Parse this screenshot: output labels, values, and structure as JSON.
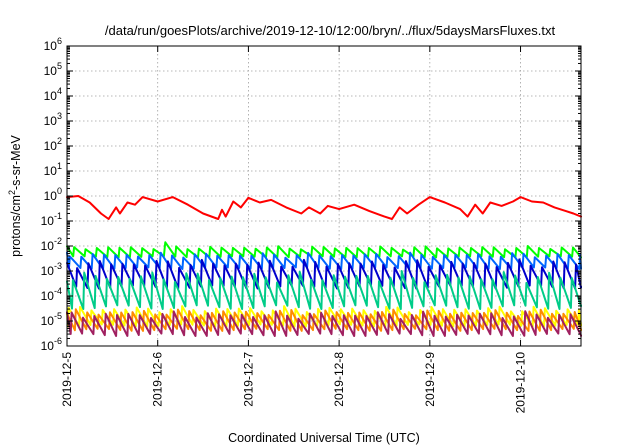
{
  "chart_data": {
    "type": "line",
    "title": "/data/run/goesPlots/archive/2019-12-10/12:00/bryn/../flux/5daysMarsFluxes.txt",
    "xlabel": "Coordinated Universal Time (UTC)",
    "ylabel_main": "protons/cm",
    "ylabel_sup": "2",
    "ylabel_tail": "-s-sr-MeV",
    "x_axis": {
      "type": "date",
      "range": [
        "2019-12-05T00:00",
        "2019-12-10T16:00"
      ],
      "tick_labels": [
        "2019-12-5",
        "2019-12-6",
        "2019-12-7",
        "2019-12-8",
        "2019-12-9",
        "2019-12-10"
      ]
    },
    "y_axis": {
      "scale": "log",
      "range": [
        1e-06,
        1000000.0
      ],
      "tick_labels": [
        {
          "base": "10",
          "exp": "-6"
        },
        {
          "base": "10",
          "exp": "-5"
        },
        {
          "base": "10",
          "exp": "-4"
        },
        {
          "base": "10",
          "exp": "-3"
        },
        {
          "base": "10",
          "exp": "-2"
        },
        {
          "base": "10",
          "exp": "-1"
        },
        {
          "base": "10",
          "exp": "0"
        },
        {
          "base": "10",
          "exp": "1"
        },
        {
          "base": "10",
          "exp": "2"
        },
        {
          "base": "10",
          "exp": "3"
        },
        {
          "base": "10",
          "exp": "4"
        },
        {
          "base": "10",
          "exp": "5"
        },
        {
          "base": "10",
          "exp": "6"
        }
      ]
    },
    "grid": true,
    "legend": "none",
    "series": [
      {
        "color": "#ff0000",
        "pattern": "smooth",
        "values": [
          [
            "2019-12-05T00:00",
            0.9
          ],
          [
            "2019-12-05T03:00",
            1.0
          ],
          [
            "2019-12-05T06:00",
            0.55
          ],
          [
            "2019-12-05T09:00",
            0.2
          ],
          [
            "2019-12-05T11:00",
            0.12
          ],
          [
            "2019-12-05T13:00",
            0.35
          ],
          [
            "2019-12-05T14:00",
            0.2
          ],
          [
            "2019-12-05T16:00",
            0.55
          ],
          [
            "2019-12-05T18:00",
            0.45
          ],
          [
            "2019-12-05T20:00",
            0.9
          ],
          [
            "2019-12-06T00:00",
            0.6
          ],
          [
            "2019-12-06T04:00",
            0.9
          ],
          [
            "2019-12-06T08:00",
            0.45
          ],
          [
            "2019-12-06T12:00",
            0.2
          ],
          [
            "2019-12-06T16:00",
            0.12
          ],
          [
            "2019-12-06T17:00",
            0.28
          ],
          [
            "2019-12-06T18:00",
            0.15
          ],
          [
            "2019-12-06T20:00",
            0.6
          ],
          [
            "2019-12-06T22:00",
            0.35
          ],
          [
            "2019-12-07T00:00",
            0.85
          ],
          [
            "2019-12-07T03:00",
            0.55
          ],
          [
            "2019-12-07T06:00",
            0.7
          ],
          [
            "2019-12-07T10:00",
            0.35
          ],
          [
            "2019-12-07T14:00",
            0.2
          ],
          [
            "2019-12-07T16:00",
            0.35
          ],
          [
            "2019-12-07T19:00",
            0.2
          ],
          [
            "2019-12-07T21:00",
            0.4
          ],
          [
            "2019-12-08T00:00",
            0.3
          ],
          [
            "2019-12-08T04:00",
            0.45
          ],
          [
            "2019-12-08T08:00",
            0.25
          ],
          [
            "2019-12-08T12:00",
            0.15
          ],
          [
            "2019-12-08T14:00",
            0.12
          ],
          [
            "2019-12-08T16:00",
            0.35
          ],
          [
            "2019-12-08T18:00",
            0.2
          ],
          [
            "2019-12-08T21:00",
            0.45
          ],
          [
            "2019-12-09T00:00",
            0.9
          ],
          [
            "2019-12-09T04:00",
            0.55
          ],
          [
            "2019-12-09T08:00",
            0.3
          ],
          [
            "2019-12-09T10:00",
            0.15
          ],
          [
            "2019-12-09T12:00",
            0.45
          ],
          [
            "2019-12-09T14:00",
            0.2
          ],
          [
            "2019-12-09T16:00",
            0.55
          ],
          [
            "2019-12-09T19:00",
            0.4
          ],
          [
            "2019-12-09T22:00",
            0.6
          ],
          [
            "2019-12-10T00:00",
            0.9
          ],
          [
            "2019-12-10T03:00",
            0.6
          ],
          [
            "2019-12-10T06:00",
            0.55
          ],
          [
            "2019-12-10T09:00",
            0.35
          ],
          [
            "2019-12-10T12:00",
            0.25
          ],
          [
            "2019-12-10T14:00",
            0.2
          ],
          [
            "2019-12-10T16:00",
            0.15
          ]
        ]
      },
      {
        "color": "#00ff00",
        "pattern": "sawtooth",
        "min": 0.0035,
        "max": 0.01,
        "spikes": [
          [
            "2019-12-06T02:00",
            0.014
          ]
        ]
      },
      {
        "color": "#0066ff",
        "pattern": "sawtooth",
        "min": 0.0012,
        "max": 0.0055
      },
      {
        "color": "#0000cc",
        "pattern": "sawtooth",
        "min": 0.0002,
        "max": 0.003
      },
      {
        "color": "#00cc88",
        "pattern": "sawtooth",
        "min": 3e-05,
        "max": 0.001
      },
      {
        "color": "#ffff00",
        "pattern": "sawtooth",
        "min": 6e-06,
        "max": 4e-05
      },
      {
        "color": "#ff8c00",
        "pattern": "sawtooth",
        "min": 4e-06,
        "max": 3e-05
      },
      {
        "color": "#a02060",
        "pattern": "sawtooth",
        "min": 2.5e-06,
        "max": 2.5e-05
      }
    ]
  }
}
